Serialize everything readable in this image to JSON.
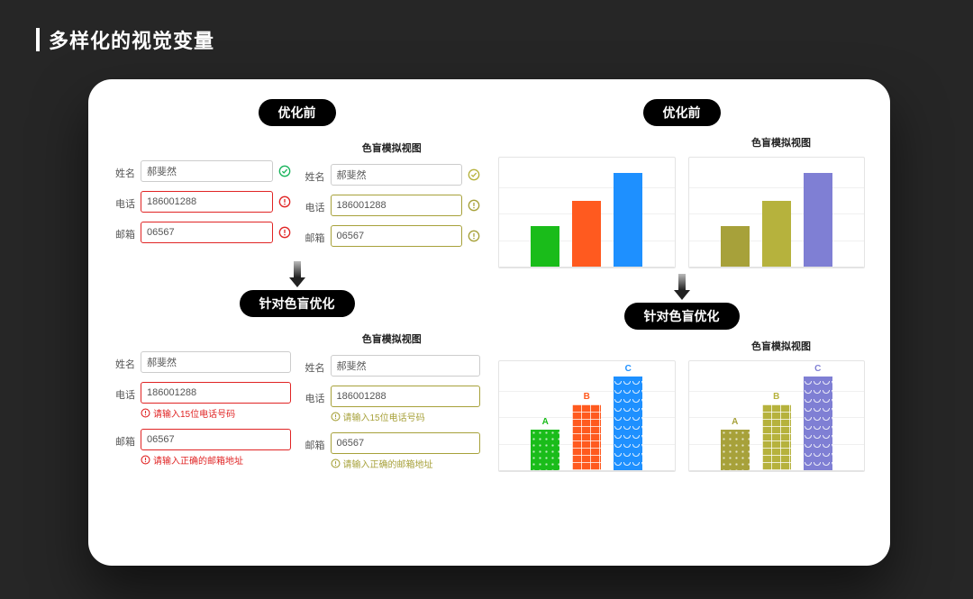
{
  "page": {
    "title": "多样化的视觉变量"
  },
  "labels": {
    "before": "优化前",
    "optimized": "针对色盲优化",
    "simView": "色盲模拟视图"
  },
  "form": {
    "fields": {
      "name": {
        "label": "姓名",
        "value": "郝斐然"
      },
      "phone": {
        "label": "电话",
        "value": "186001288",
        "help": "请输入15位电话号码"
      },
      "email": {
        "label": "邮箱",
        "value": "06567",
        "help": "请输入正确的邮箱地址"
      }
    },
    "colors": {
      "default": "#cccccc",
      "success": "#17b35a",
      "error": "#e02424",
      "cbSuccess": "#b6b23d",
      "cbError": "#a7a13a"
    }
  },
  "charts": {
    "gridLines": [
      0.25,
      0.5,
      0.75
    ],
    "bars": [
      {
        "label": "A",
        "height": 0.38
      },
      {
        "label": "B",
        "height": 0.62
      },
      {
        "label": "C",
        "height": 0.88
      }
    ],
    "palettes": {
      "normal": [
        "#1abc1a",
        "#ff5a1f",
        "#1e90ff"
      ],
      "cbNormal": [
        "#a7a13a",
        "#b6b23d",
        "#7f7fd4"
      ],
      "labelNormal": [
        "#1abc1a",
        "#ff5a1f",
        "#1e90ff"
      ],
      "labelCb": [
        "#a7a13a",
        "#b6b23d",
        "#7f7fd4"
      ]
    },
    "patterns": [
      "pat-dots",
      "pat-bricks",
      "pat-waves"
    ]
  }
}
